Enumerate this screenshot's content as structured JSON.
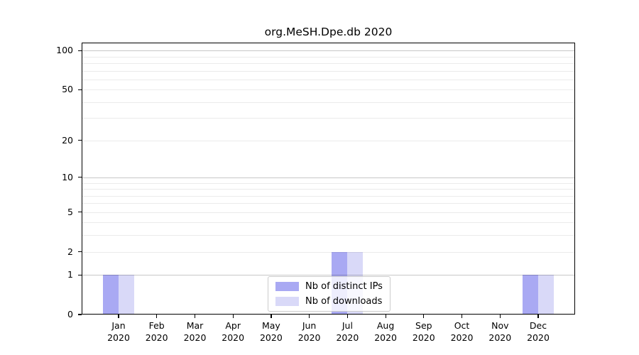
{
  "chart_data": {
    "type": "bar",
    "title": "org.MeSH.Dpe.db 2020",
    "categories": [
      {
        "month": "Jan",
        "year": "2020"
      },
      {
        "month": "Feb",
        "year": "2020"
      },
      {
        "month": "Mar",
        "year": "2020"
      },
      {
        "month": "Apr",
        "year": "2020"
      },
      {
        "month": "May",
        "year": "2020"
      },
      {
        "month": "Jun",
        "year": "2020"
      },
      {
        "month": "Jul",
        "year": "2020"
      },
      {
        "month": "Aug",
        "year": "2020"
      },
      {
        "month": "Sep",
        "year": "2020"
      },
      {
        "month": "Oct",
        "year": "2020"
      },
      {
        "month": "Nov",
        "year": "2020"
      },
      {
        "month": "Dec",
        "year": "2020"
      }
    ],
    "series": [
      {
        "name": "Nb of distinct IPs",
        "color": "#a9a9f3",
        "values": [
          1,
          0,
          0,
          0,
          0,
          0,
          2,
          0,
          0,
          0,
          0,
          1
        ]
      },
      {
        "name": "Nb of downloads",
        "color": "#d9d9f8",
        "values": [
          1,
          0,
          0,
          0,
          0,
          0,
          2,
          0,
          0,
          0,
          0,
          1
        ]
      }
    ],
    "y_scale": "log10(1+x)",
    "ylim": [
      0,
      115
    ],
    "y_ticks": [
      0,
      1,
      2,
      5,
      10,
      20,
      50,
      100
    ],
    "gridlines": {
      "major": [
        1,
        10,
        100
      ],
      "minor": [
        2,
        3,
        4,
        5,
        6,
        7,
        8,
        9,
        20,
        30,
        40,
        50,
        60,
        70,
        80,
        90
      ]
    },
    "legend": {
      "position": "bottom-center",
      "items": [
        "Nb of distinct IPs",
        "Nb of downloads"
      ]
    },
    "colors": {
      "bar_distinct_ips": "#a9a9f3",
      "bar_downloads": "#d9d9f8",
      "grid_major": "#c8c8c8",
      "grid_minor": "#ececec",
      "spine": "#000000",
      "background": "#ffffff"
    },
    "grid": true
  }
}
